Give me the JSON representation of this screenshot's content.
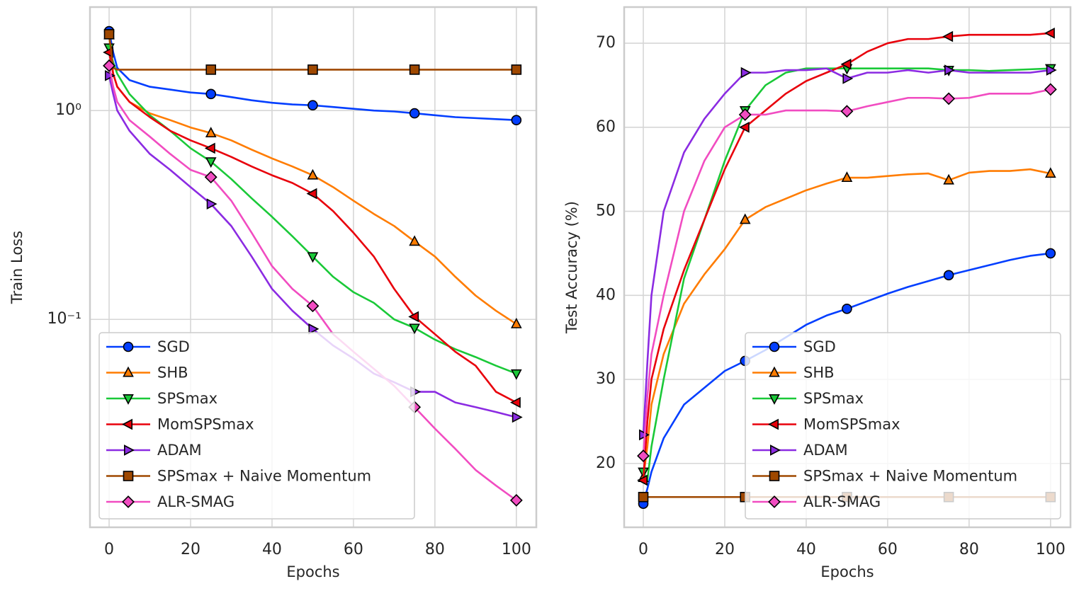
{
  "chart_data": [
    {
      "type": "line",
      "xlabel": "Epochs",
      "ylabel": "Train Loss",
      "yscale": "log",
      "grid": true,
      "legend": "lower left",
      "markevery": 25,
      "xlim": [
        -4.7,
        104.9
      ],
      "ylim": [
        0.0101,
        3.13
      ],
      "xticks": [
        0,
        20,
        40,
        60,
        80,
        100
      ],
      "yticks": [
        {
          "value": 1,
          "label": "10⁰"
        },
        {
          "value": 0.1,
          "label": "10⁻¹"
        }
      ],
      "x": [
        0,
        1,
        2,
        5,
        10,
        15,
        20,
        25,
        30,
        35,
        40,
        45,
        50,
        55,
        60,
        65,
        70,
        75,
        80,
        85,
        90,
        95,
        100
      ],
      "series": [
        {
          "name": "SGD",
          "color": "#023eff",
          "marker": "o",
          "values": [
            2.4,
            1.9,
            1.6,
            1.4,
            1.3,
            1.26,
            1.22,
            1.2,
            1.16,
            1.12,
            1.09,
            1.07,
            1.06,
            1.04,
            1.02,
            1.0,
            0.99,
            0.97,
            0.95,
            0.93,
            0.92,
            0.91,
            0.9
          ]
        },
        {
          "name": "SHB",
          "color": "#ff7c00",
          "marker": "^",
          "values": [
            2.3,
            1.5,
            1.3,
            1.1,
            0.97,
            0.9,
            0.83,
            0.78,
            0.72,
            0.65,
            0.59,
            0.54,
            0.49,
            0.43,
            0.37,
            0.32,
            0.28,
            0.236,
            0.2,
            0.16,
            0.13,
            0.11,
            0.095
          ]
        },
        {
          "name": "SPSmax",
          "color": "#1ac938",
          "marker": "v",
          "values": [
            2.0,
            1.7,
            1.5,
            1.2,
            0.95,
            0.8,
            0.66,
            0.57,
            0.47,
            0.38,
            0.31,
            0.25,
            0.2,
            0.16,
            0.135,
            0.12,
            0.1,
            0.091,
            0.08,
            0.072,
            0.066,
            0.06,
            0.055
          ]
        },
        {
          "name": "MomSPSmax",
          "color": "#e8000b",
          "marker": "<",
          "values": [
            1.9,
            1.5,
            1.3,
            1.1,
            0.93,
            0.8,
            0.72,
            0.66,
            0.6,
            0.54,
            0.49,
            0.45,
            0.4,
            0.33,
            0.26,
            0.2,
            0.14,
            0.103,
            0.085,
            0.07,
            0.06,
            0.045,
            0.04
          ]
        },
        {
          "name": "ADAM",
          "color": "#8b2be2",
          "marker": ">",
          "values": [
            1.47,
            1.2,
            1.0,
            0.8,
            0.62,
            0.52,
            0.43,
            0.357,
            0.28,
            0.2,
            0.14,
            0.11,
            0.09,
            0.075,
            0.065,
            0.055,
            0.05,
            0.045,
            0.045,
            0.04,
            0.038,
            0.036,
            0.034
          ]
        },
        {
          "name": "SPSmax + Naive Momentum",
          "color": "#9f4800",
          "marker": "s",
          "values": [
            2.32,
            1.6,
            1.57,
            1.57,
            1.57,
            1.57,
            1.57,
            1.57,
            1.57,
            1.57,
            1.57,
            1.57,
            1.57,
            1.57,
            1.57,
            1.57,
            1.57,
            1.57,
            1.57,
            1.57,
            1.57,
            1.57,
            1.57
          ]
        },
        {
          "name": "ALR-SMAG",
          "color": "#f14cc1",
          "marker": "D",
          "values": [
            1.64,
            1.3,
            1.1,
            0.9,
            0.75,
            0.62,
            0.52,
            0.48,
            0.37,
            0.26,
            0.18,
            0.14,
            0.116,
            0.085,
            0.07,
            0.058,
            0.048,
            0.038,
            0.03,
            0.024,
            0.019,
            0.016,
            0.0136
          ]
        }
      ]
    },
    {
      "type": "line",
      "xlabel": "Epochs",
      "ylabel": "Test Accuracy  (%)",
      "yscale": "linear",
      "grid": true,
      "legend": "lower right",
      "markevery": 25,
      "xlim": [
        -4.7,
        104.9
      ],
      "ylim": [
        12.4,
        74.3
      ],
      "xticks": [
        0,
        20,
        40,
        60,
        80,
        100
      ],
      "yticks": [
        20,
        30,
        40,
        50,
        60,
        70
      ],
      "x": [
        0,
        1,
        2,
        5,
        10,
        15,
        20,
        25,
        30,
        35,
        40,
        45,
        50,
        55,
        60,
        65,
        70,
        75,
        80,
        85,
        90,
        95,
        100
      ],
      "series": [
        {
          "name": "SGD",
          "color": "#023eff",
          "marker": "o",
          "values": [
            15.2,
            17,
            19,
            23,
            27,
            29,
            31,
            32.2,
            33.5,
            35,
            36.5,
            37.6,
            38.4,
            39.3,
            40.2,
            41,
            41.7,
            42.4,
            43,
            43.6,
            44.2,
            44.7,
            45
          ]
        },
        {
          "name": "SHB",
          "color": "#ff7c00",
          "marker": "^",
          "values": [
            18.3,
            22,
            27,
            33,
            39,
            42.5,
            45.5,
            49,
            50.5,
            51.5,
            52.5,
            53.3,
            54,
            54,
            54.2,
            54.4,
            54.5,
            53.7,
            54.6,
            54.8,
            54.8,
            55,
            54.5
          ]
        },
        {
          "name": "SPSmax",
          "color": "#1ac938",
          "marker": "v",
          "values": [
            19,
            18,
            22,
            30,
            42,
            49,
            56,
            62,
            65,
            66.5,
            67,
            67,
            67,
            67,
            67,
            67,
            67,
            66.8,
            66.8,
            66.7,
            66.8,
            66.9,
            67
          ]
        },
        {
          "name": "MomSPSmax",
          "color": "#e8000b",
          "marker": "<",
          "values": [
            18,
            25,
            30,
            36,
            43,
            49,
            55,
            60,
            62,
            64,
            65.5,
            66.5,
            67.5,
            69,
            70,
            70.5,
            70.5,
            70.8,
            71,
            71,
            71,
            71,
            71.2
          ]
        },
        {
          "name": "ADAM",
          "color": "#8b2be2",
          "marker": ">",
          "values": [
            23.4,
            32,
            40,
            50,
            57,
            61,
            64,
            66.5,
            66.5,
            66.8,
            66.8,
            67,
            65.8,
            66.5,
            66.5,
            66.8,
            66.5,
            66.8,
            66.5,
            66.5,
            66.5,
            66.5,
            66.8
          ]
        },
        {
          "name": "SPSmax + Naive Momentum",
          "color": "#9f4800",
          "marker": "s",
          "values": [
            16,
            16,
            16,
            16,
            16,
            16,
            16,
            16,
            16,
            16,
            16,
            16,
            16,
            16,
            16,
            16,
            16,
            16,
            16,
            16,
            16,
            16,
            16
          ]
        },
        {
          "name": "ALR-SMAG",
          "color": "#f14cc1",
          "marker": "D",
          "values": [
            20.9,
            28,
            33,
            40,
            50,
            56,
            60,
            61.5,
            61.5,
            62,
            62,
            62,
            61.9,
            62.5,
            63,
            63.5,
            63.5,
            63.4,
            63.5,
            64,
            64,
            64,
            64.5
          ]
        }
      ]
    }
  ]
}
